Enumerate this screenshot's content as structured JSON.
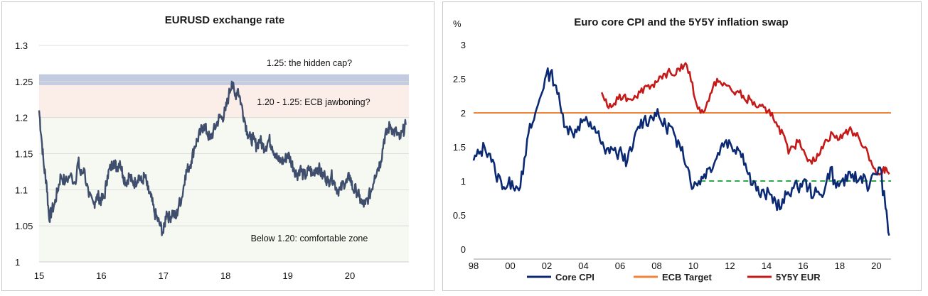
{
  "colors": {
    "eurusd_line": "#3f4e6d",
    "cap_band": "#c3cbe0",
    "jawbone_band": "#fbeee8",
    "comfort_band": "#f6f9f1",
    "core_cpi": "#0c2a73",
    "ecb_target": "#f0853a",
    "swap": "#c41a1a",
    "guide": "#2ea94a"
  },
  "chart_data": [
    {
      "type": "line",
      "title": "EURUSD exchange rate",
      "xlabel": "",
      "ylabel": "",
      "x_ticks": [
        "15",
        "16",
        "17",
        "18",
        "19",
        "20"
      ],
      "y_ticks": [
        "1",
        "1.05",
        "1.1",
        "1.15",
        "1.2",
        "1.25",
        "1.3"
      ],
      "xlim": [
        2015.0,
        2020.95
      ],
      "ylim": [
        1.0,
        1.3
      ],
      "grid": true,
      "bands": [
        {
          "from": 1.245,
          "to": 1.26,
          "label": "1.25: the hidden cap?",
          "color_key": "cap_band"
        },
        {
          "from": 1.2,
          "to": 1.245,
          "label": "1.20 - 1.25: ECB jawboning?",
          "color_key": "jawbone_band"
        },
        {
          "from": 1.0,
          "to": 1.2,
          "label": "Below 1.20: comfortable zone",
          "color_key": "comfort_band"
        }
      ],
      "series": [
        {
          "values_x": [
            2015.0,
            2015.04,
            2015.08,
            2015.12,
            2015.16,
            2015.2,
            2015.25,
            2015.3,
            2015.35,
            2015.42,
            2015.5,
            2015.58,
            2015.63,
            2015.67,
            2015.72,
            2015.8,
            2015.88,
            2015.92,
            2015.96,
            2016.0,
            2016.05,
            2016.1,
            2016.15,
            2016.2,
            2016.25,
            2016.3,
            2016.35,
            2016.4,
            2016.45,
            2016.5,
            2016.55,
            2016.6,
            2016.65,
            2016.7,
            2016.75,
            2016.8,
            2016.85,
            2016.9,
            2016.95,
            2017.0,
            2017.05,
            2017.1,
            2017.15,
            2017.2,
            2017.25,
            2017.3,
            2017.35,
            2017.4,
            2017.45,
            2017.5,
            2017.55,
            2017.6,
            2017.65,
            2017.7,
            2017.75,
            2017.8,
            2017.85,
            2017.9,
            2017.95,
            2018.0,
            2018.05,
            2018.1,
            2018.15,
            2018.2,
            2018.25,
            2018.3,
            2018.35,
            2018.4,
            2018.45,
            2018.5,
            2018.55,
            2018.6,
            2018.65,
            2018.7,
            2018.75,
            2018.8,
            2018.85,
            2018.9,
            2018.95,
            2019.0,
            2019.05,
            2019.1,
            2019.15,
            2019.2,
            2019.25,
            2019.3,
            2019.35,
            2019.4,
            2019.45,
            2019.5,
            2019.55,
            2019.6,
            2019.65,
            2019.7,
            2019.75,
            2019.8,
            2019.85,
            2019.9,
            2019.95,
            2020.0,
            2020.05,
            2020.1,
            2020.15,
            2020.2,
            2020.25,
            2020.3,
            2020.35,
            2020.4,
            2020.45,
            2020.5,
            2020.55,
            2020.6,
            2020.65,
            2020.7,
            2020.75,
            2020.8,
            2020.85,
            2020.9
          ],
          "values_y": [
            1.21,
            1.17,
            1.13,
            1.11,
            1.06,
            1.07,
            1.08,
            1.1,
            1.12,
            1.11,
            1.12,
            1.11,
            1.14,
            1.12,
            1.13,
            1.09,
            1.08,
            1.09,
            1.09,
            1.085,
            1.09,
            1.12,
            1.13,
            1.14,
            1.13,
            1.14,
            1.12,
            1.11,
            1.12,
            1.11,
            1.11,
            1.12,
            1.11,
            1.12,
            1.1,
            1.09,
            1.07,
            1.06,
            1.05,
            1.04,
            1.07,
            1.06,
            1.07,
            1.06,
            1.08,
            1.09,
            1.12,
            1.13,
            1.14,
            1.16,
            1.17,
            1.18,
            1.19,
            1.18,
            1.17,
            1.18,
            1.19,
            1.2,
            1.2,
            1.21,
            1.23,
            1.25,
            1.23,
            1.24,
            1.22,
            1.2,
            1.18,
            1.17,
            1.17,
            1.16,
            1.17,
            1.16,
            1.16,
            1.17,
            1.16,
            1.15,
            1.14,
            1.14,
            1.14,
            1.15,
            1.14,
            1.13,
            1.12,
            1.13,
            1.12,
            1.12,
            1.13,
            1.12,
            1.13,
            1.13,
            1.12,
            1.12,
            1.11,
            1.12,
            1.11,
            1.1,
            1.1,
            1.11,
            1.11,
            1.12,
            1.1,
            1.1,
            1.09,
            1.08,
            1.08,
            1.09,
            1.1,
            1.12,
            1.13,
            1.14,
            1.17,
            1.18,
            1.19,
            1.18,
            1.18,
            1.17,
            1.18,
            1.19
          ]
        }
      ]
    },
    {
      "type": "line",
      "title": "Euro core CPI and the 5Y5Y inflation swap",
      "xlabel": "",
      "ylabel": "%",
      "x_ticks": [
        "98",
        "00",
        "02",
        "04",
        "06",
        "08",
        "10",
        "12",
        "14",
        "16",
        "18",
        "20"
      ],
      "y_ticks": [
        "0",
        "0.5",
        "1",
        "1.5",
        "2",
        "2.5",
        "3"
      ],
      "xlim": [
        1998.0,
        2020.8
      ],
      "ylim": [
        0,
        3
      ],
      "grid": false,
      "series": [
        {
          "name": "Core CPI",
          "color_key": "core_cpi",
          "x": [
            1998.0,
            1998.3,
            1998.6,
            1998.9,
            1999.2,
            1999.5,
            1999.8,
            2000.1,
            2000.4,
            2000.7,
            2001.0,
            2001.3,
            2001.6,
            2001.9,
            2002.2,
            2002.5,
            2002.8,
            2003.1,
            2003.4,
            2003.7,
            2004.0,
            2004.3,
            2004.6,
            2004.9,
            2005.2,
            2005.5,
            2005.8,
            2006.1,
            2006.4,
            2006.7,
            2007.0,
            2007.3,
            2007.6,
            2007.9,
            2008.2,
            2008.5,
            2008.8,
            2009.1,
            2009.4,
            2009.7,
            2010.0,
            2010.3,
            2010.6,
            2010.9,
            2011.2,
            2011.5,
            2011.8,
            2012.1,
            2012.4,
            2012.7,
            2013.0,
            2013.3,
            2013.6,
            2013.9,
            2014.2,
            2014.5,
            2014.8,
            2015.1,
            2015.4,
            2015.7,
            2016.0,
            2016.3,
            2016.6,
            2016.9,
            2017.2,
            2017.5,
            2017.8,
            2018.1,
            2018.4,
            2018.7,
            2019.0,
            2019.3,
            2019.6,
            2019.9,
            2020.2,
            2020.5,
            2020.7
          ],
          "values": [
            1.3,
            1.4,
            1.5,
            1.4,
            1.1,
            1.0,
            0.9,
            1.0,
            0.9,
            1.1,
            1.7,
            1.9,
            2.2,
            2.5,
            2.6,
            2.4,
            2.0,
            1.8,
            1.7,
            1.8,
            1.9,
            1.8,
            1.8,
            1.6,
            1.4,
            1.5,
            1.4,
            1.4,
            1.3,
            1.5,
            1.8,
            1.9,
            1.9,
            2.0,
            1.9,
            1.8,
            1.8,
            1.5,
            1.5,
            1.2,
            0.9,
            1.0,
            1.1,
            1.2,
            1.3,
            1.5,
            1.6,
            1.5,
            1.5,
            1.4,
            1.1,
            1.0,
            0.8,
            0.8,
            0.8,
            0.7,
            0.6,
            0.8,
            0.9,
            0.9,
            1.0,
            0.9,
            0.8,
            0.8,
            0.9,
            1.2,
            0.9,
            1.0,
            1.0,
            1.1,
            1.0,
            1.1,
            0.9,
            1.1,
            1.2,
            0.6,
            0.2
          ]
        },
        {
          "name": "ECB Target",
          "color_key": "ecb_target",
          "x": [
            1998.0,
            2020.8
          ],
          "values": [
            2.0,
            2.0
          ]
        },
        {
          "name": "5Y5Y EUR",
          "color_key": "swap",
          "x": [
            2005.0,
            2005.3,
            2005.6,
            2005.9,
            2006.2,
            2006.5,
            2006.8,
            2007.1,
            2007.4,
            2007.7,
            2008.0,
            2008.3,
            2008.6,
            2008.9,
            2009.2,
            2009.5,
            2009.8,
            2010.1,
            2010.4,
            2010.7,
            2011.0,
            2011.3,
            2011.6,
            2011.9,
            2012.2,
            2012.5,
            2012.8,
            2013.1,
            2013.4,
            2013.7,
            2014.0,
            2014.3,
            2014.6,
            2014.9,
            2015.2,
            2015.5,
            2015.8,
            2016.1,
            2016.4,
            2016.7,
            2017.0,
            2017.3,
            2017.6,
            2017.9,
            2018.2,
            2018.5,
            2018.8,
            2019.1,
            2019.4,
            2019.7,
            2020.0,
            2020.3,
            2020.5,
            2020.7
          ],
          "values": [
            2.3,
            2.1,
            2.1,
            2.2,
            2.25,
            2.2,
            2.25,
            2.3,
            2.4,
            2.4,
            2.45,
            2.5,
            2.6,
            2.55,
            2.65,
            2.7,
            2.6,
            2.2,
            2.0,
            2.1,
            2.3,
            2.5,
            2.4,
            2.4,
            2.3,
            2.3,
            2.2,
            2.2,
            2.1,
            2.1,
            2.0,
            2.0,
            1.8,
            1.7,
            1.4,
            1.5,
            1.6,
            1.4,
            1.3,
            1.3,
            1.5,
            1.6,
            1.7,
            1.6,
            1.7,
            1.75,
            1.7,
            1.6,
            1.5,
            1.3,
            1.1,
            1.1,
            1.2,
            1.1
          ]
        }
      ],
      "guide": {
        "style": "dashed",
        "from_x": 2010.4,
        "to_x": 2020.8,
        "y": 1.0
      },
      "legend": [
        "Core CPI",
        "ECB Target",
        "5Y5Y EUR"
      ],
      "legend_position": "bottom"
    }
  ]
}
